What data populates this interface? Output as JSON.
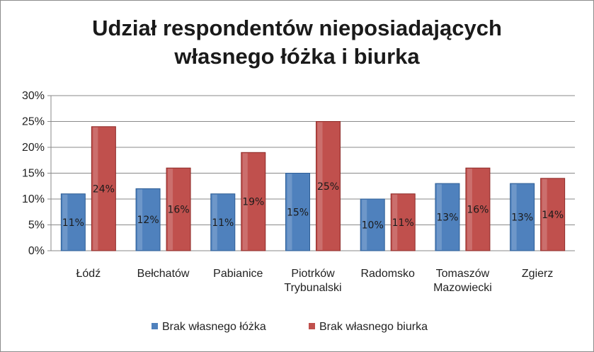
{
  "chart_data": {
    "type": "bar",
    "title_lines": [
      "Udział respondentów nieposiadających",
      "własnego łóżka i biurka"
    ],
    "categories": [
      [
        "Łódź"
      ],
      [
        "Bełchatów"
      ],
      [
        "Pabianice"
      ],
      [
        "Piotrków",
        "Trybunalski"
      ],
      [
        "Radomsko"
      ],
      [
        "Tomaszów",
        "Mazowiecki"
      ],
      [
        "Zgierz"
      ]
    ],
    "series": [
      {
        "name": "Brak własnego łóżka",
        "color": "#4f81bd",
        "values": [
          11,
          12,
          11,
          15,
          10,
          13,
          13
        ],
        "labels": [
          "11%",
          "12%",
          "11%",
          "15%",
          "10%",
          "13%",
          "13%"
        ]
      },
      {
        "name": "Brak własnego biurka",
        "color": "#c0504d",
        "values": [
          24,
          16,
          19,
          25,
          11,
          16,
          14
        ],
        "labels": [
          "24%",
          "16%",
          "19%",
          "25%",
          "11%",
          "16%",
          "14%"
        ]
      }
    ],
    "y_ticks": [
      "0%",
      "5%",
      "10%",
      "15%",
      "20%",
      "25%",
      "30%"
    ],
    "ylim": [
      0,
      30
    ],
    "grid": true,
    "legend_position": "bottom"
  }
}
